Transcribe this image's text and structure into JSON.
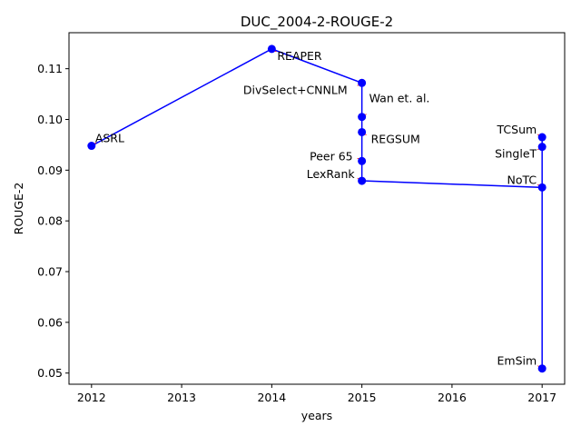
{
  "chart_data": {
    "type": "line",
    "title": "DUC_2004-2-ROUGE-2",
    "xlabel": "years",
    "ylabel": "ROUGE-2",
    "xlim": [
      2011.75,
      2017.25
    ],
    "ylim": [
      0.0478,
      0.1171
    ],
    "xticks": [
      2012,
      2013,
      2014,
      2015,
      2016,
      2017
    ],
    "yticks": [
      0.05,
      0.06,
      0.07,
      0.08,
      0.09,
      0.1,
      0.11
    ],
    "ytick_labels": [
      "0.05",
      "0.06",
      "0.07",
      "0.08",
      "0.09",
      "0.10",
      "0.11"
    ],
    "grid": false,
    "line_color": "#0000ff",
    "marker_color": "#0000ff",
    "arrow_color": "#ff0000",
    "points": [
      {
        "x": 2012,
        "y": 0.0948,
        "label": "ASRL"
      },
      {
        "x": 2014,
        "y": 0.1139,
        "label": "REAPER"
      },
      {
        "x": 2015,
        "y": 0.1072,
        "label": "DivSelect+CNNLM"
      },
      {
        "x": 2015,
        "y": 0.1005,
        "label": "Wan et. al."
      },
      {
        "x": 2015,
        "y": 0.0975,
        "label": "REGSUM"
      },
      {
        "x": 2015,
        "y": 0.0918,
        "label": "Peer 65"
      },
      {
        "x": 2015,
        "y": 0.0879,
        "label": "LexRank"
      },
      {
        "x": 2017,
        "y": 0.0866,
        "label": "NoTC"
      },
      {
        "x": 2017,
        "y": 0.0509,
        "label": "EmSim"
      },
      {
        "x": 2017,
        "y": 0.0965,
        "label": "TCSum"
      },
      {
        "x": 2017,
        "y": 0.0946,
        "label": "SingleT"
      }
    ]
  }
}
